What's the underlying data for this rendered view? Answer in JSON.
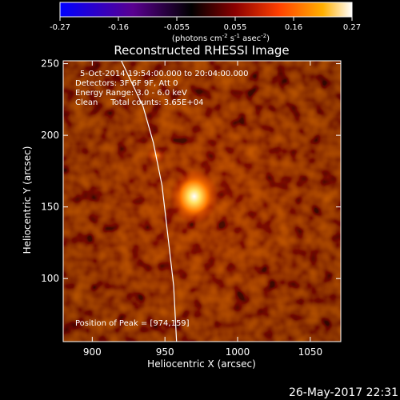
{
  "chart_data": {
    "type": "heatmap",
    "title": "Reconstructed RHESSI Image",
    "xlabel": "Heliocentric X (arcsec)",
    "ylabel": "Heliocentric Y (arcsec)",
    "xlim": [
      880,
      1071
    ],
    "ylim": [
      56,
      252
    ],
    "x_ticks": [
      900,
      950,
      1000,
      1050
    ],
    "y_ticks": [
      100,
      150,
      200,
      250
    ],
    "colorbar": {
      "range": [
        -0.27,
        0.27
      ],
      "ticks": [
        "-0.27",
        "-0.16",
        "-0.055",
        "0.055",
        "0.16",
        "0.27"
      ],
      "unit_prefix": "(photons cm",
      "unit_mid": " s",
      "unit_post": " asec",
      "unit_sup1": "-2",
      "unit_sup2": "-1",
      "unit_sup3": "-2",
      "unit_suffix": ")"
    },
    "annotations": [
      "5-Oct-2014 19:54:00.000 to 20:04:00.000",
      "Detectors: 3F 6F 9F, Att 0",
      "Energy Range: 3.0 - 6.0 keV",
      "Clean     Total counts: 3.65E+04"
    ],
    "peak_label": "Position of Peak = [974,159]",
    "peak": {
      "x": 974,
      "y": 159
    },
    "secondary_source": {
      "x": 944,
      "y": 186
    },
    "limb_curve": [
      [
        920,
        252
      ],
      [
        935,
        220
      ],
      [
        942,
        195
      ],
      [
        948,
        165
      ],
      [
        952,
        130
      ],
      [
        956,
        95
      ],
      [
        958,
        56
      ]
    ],
    "colors": {
      "limb": "#ffffff",
      "frame": "#ffffff",
      "colormap": [
        "#0000ff",
        "#5a0090",
        "#000000",
        "#8b0000",
        "#ff4000",
        "#ffb000",
        "#ffffff"
      ]
    }
  },
  "footer_date": "26-May-2017 22:31"
}
